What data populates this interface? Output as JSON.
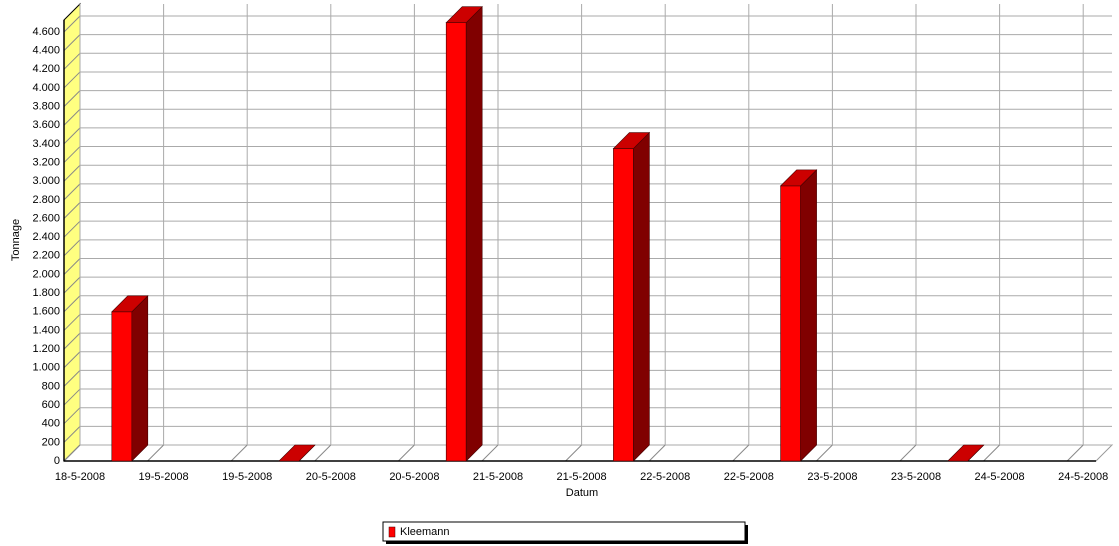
{
  "chart_data": {
    "type": "bar3d",
    "x_label": "Datum",
    "y_label": "Tonnage",
    "x_tick_labels": [
      "18-5-2008",
      "19-5-2008",
      "19-5-2008",
      "20-5-2008",
      "20-5-2008",
      "21-5-2008",
      "21-5-2008",
      "22-5-2008",
      "22-5-2008",
      "23-5-2008",
      "23-5-2008",
      "24-5-2008",
      "24-5-2008"
    ],
    "series": [
      {
        "name": "Kleemann",
        "color": "#ff0000",
        "values": [
          1600,
          null,
          0,
          null,
          4700,
          null,
          3350,
          null,
          2950,
          null,
          0,
          null
        ]
      }
    ],
    "ylim": [
      0,
      4750
    ],
    "yticks": [
      0,
      200,
      400,
      600,
      800,
      {
        "value": 1000,
        "label": "1.000"
      },
      {
        "value": 1200,
        "label": "1.200"
      },
      {
        "value": 1400,
        "label": "1.400"
      },
      {
        "value": 1600,
        "label": "1.600"
      },
      {
        "value": 1800,
        "label": "1.800"
      },
      {
        "value": 2000,
        "label": "2.000"
      },
      {
        "value": 2200,
        "label": "2.200"
      },
      {
        "value": 2400,
        "label": "2.400"
      },
      {
        "value": 2600,
        "label": "2.600"
      },
      {
        "value": 2800,
        "label": "2.800"
      },
      {
        "value": 3000,
        "label": "3.000"
      },
      {
        "value": 3200,
        "label": "3.200"
      },
      {
        "value": 3400,
        "label": "3.400"
      },
      {
        "value": 3600,
        "label": "3.600"
      },
      {
        "value": 3800,
        "label": "3.800"
      },
      {
        "value": 4000,
        "label": "4.000"
      },
      {
        "value": 4200,
        "label": "4.200"
      },
      {
        "value": 4400,
        "label": "4.400"
      },
      {
        "value": 4600,
        "label": "4.600"
      }
    ],
    "grid": true
  }
}
